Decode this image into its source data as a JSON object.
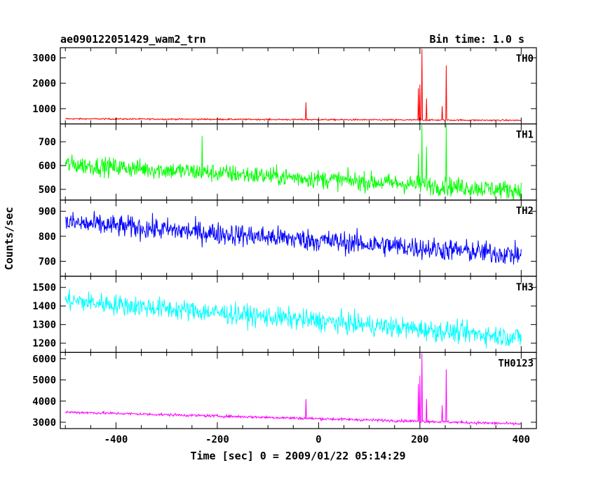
{
  "chart_data": {
    "type": "line",
    "title": "ae090122051429_wam2_trn",
    "bin_time": "Bin time: 1.0 s",
    "xlabel": "Time [sec] 0 = 2009/01/22 05:14:29",
    "ylabel": "Counts/sec",
    "xlim": [
      -510,
      430
    ],
    "x_ticks": [
      -400,
      -200,
      0,
      200,
      400
    ],
    "grid": false,
    "panels": [
      {
        "name": "TH0",
        "color": "#ff0000",
        "ylim": [
          400,
          3400
        ],
        "yticks": [
          1000,
          2000,
          3000
        ],
        "base_start": 600,
        "base_end": 540,
        "noise": 20,
        "spikes": [
          {
            "x": -25,
            "y": 1250
          },
          {
            "x": 197,
            "y": 1800
          },
          {
            "x": 200,
            "y": 1950
          },
          {
            "x": 204,
            "y": 3350
          },
          {
            "x": 213,
            "y": 1400
          },
          {
            "x": 244,
            "y": 1100
          },
          {
            "x": 252,
            "y": 2700
          }
        ]
      },
      {
        "name": "TH1",
        "color": "#00ff00",
        "ylim": [
          455,
          775
        ],
        "yticks": [
          500,
          600,
          700
        ],
        "base_start": 605,
        "base_end": 495,
        "noise": 28,
        "spikes": [
          {
            "x": -230,
            "y": 725
          },
          {
            "x": 197,
            "y": 650
          },
          {
            "x": 204,
            "y": 770
          },
          {
            "x": 213,
            "y": 680
          },
          {
            "x": 252,
            "y": 770
          }
        ]
      },
      {
        "name": "TH2",
        "color": "#0000ff",
        "ylim": [
          640,
          945
        ],
        "yticks": [
          700,
          800,
          900
        ],
        "base_start": 855,
        "base_end": 725,
        "noise": 32,
        "spikes": []
      },
      {
        "name": "TH3",
        "color": "#00ffff",
        "ylim": [
          1150,
          1560
        ],
        "yticks": [
          1200,
          1300,
          1400,
          1500
        ],
        "base_start": 1430,
        "base_end": 1230,
        "noise": 40,
        "spikes": []
      },
      {
        "name": "TH0123",
        "color": "#ff00ff",
        "ylim": [
          2700,
          6300
        ],
        "yticks": [
          3000,
          4000,
          5000,
          6000
        ],
        "base_start": 3480,
        "base_end": 2920,
        "noise": 45,
        "spikes": [
          {
            "x": -25,
            "y": 4100
          },
          {
            "x": 197,
            "y": 4800
          },
          {
            "x": 200,
            "y": 5200
          },
          {
            "x": 204,
            "y": 6250
          },
          {
            "x": 213,
            "y": 4100
          },
          {
            "x": 244,
            "y": 3800
          },
          {
            "x": 252,
            "y": 5500
          }
        ]
      }
    ]
  }
}
